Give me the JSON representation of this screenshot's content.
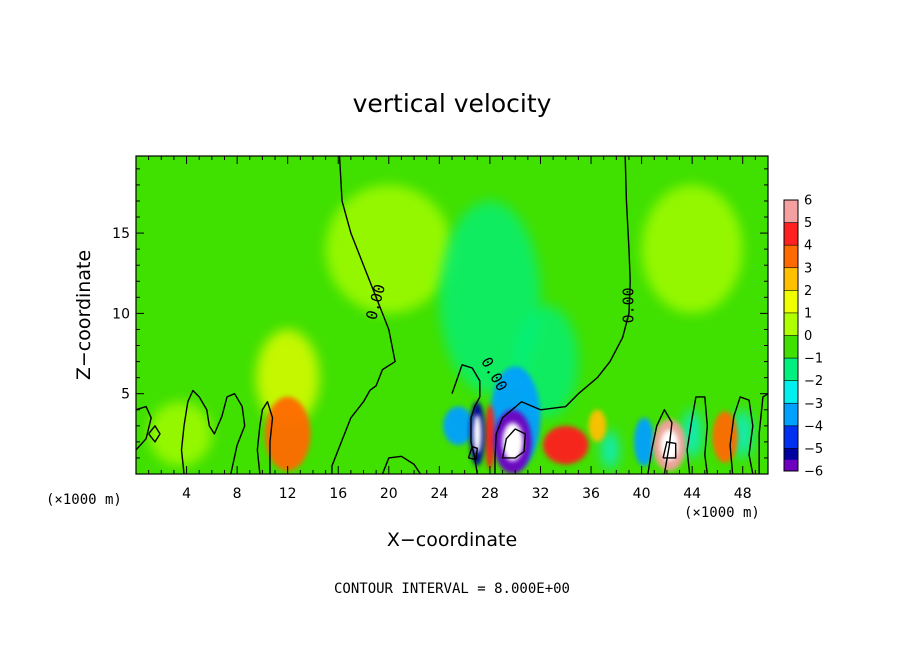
{
  "chart_data": {
    "type": "heatmap",
    "title": "vertical velocity",
    "xlabel": "X−coordinate",
    "ylabel": "Z−coordinate",
    "x_unit_left": "(×1000 m)",
    "x_unit_right": "(×1000 m)",
    "footer": "CONTOUR INTERVAL = 8.000E+00",
    "xlim": [
      0,
      50
    ],
    "ylim": [
      0,
      19.8
    ],
    "x_ticks": [
      4,
      8,
      12,
      16,
      20,
      24,
      28,
      32,
      36,
      40,
      44,
      48
    ],
    "x_tick_labels": [
      "4",
      "8",
      "12",
      "16",
      "20",
      "24",
      "28",
      "32",
      "36",
      "40",
      "44",
      "48"
    ],
    "y_ticks": [
      5,
      10,
      15
    ],
    "y_tick_labels": [
      "5",
      "10",
      "15"
    ],
    "contour_label": "0.00",
    "colorbar": {
      "levels": [
        6,
        5,
        4,
        3,
        2,
        1,
        0,
        -1,
        -2,
        -3,
        -4,
        -5,
        -6
      ],
      "labels": [
        "6",
        "5",
        "4",
        "3",
        "2",
        "1",
        "0",
        "−1",
        "−2",
        "−3",
        "−4",
        "−5",
        "−6"
      ],
      "colors": [
        "#f4a0a0",
        "#ff2020",
        "#ff6a00",
        "#ffc000",
        "#f0ff00",
        "#b0ff00",
        "#40e000",
        "#00f080",
        "#00f0f0",
        "#00a0ff",
        "#0030f0",
        "#0000a0",
        "#7000c0"
      ]
    },
    "background_color": "#40e000",
    "features": [
      {
        "x": 12.0,
        "z": 2.5,
        "rx": 1.8,
        "rz": 2.3,
        "value": 4
      },
      {
        "x": 12.0,
        "z": 6.0,
        "rx": 2.5,
        "rz": 3.0,
        "value": 1.5
      },
      {
        "x": 3.5,
        "z": 2.5,
        "rx": 2.5,
        "rz": 2.0,
        "value": 0.5
      },
      {
        "x": 27.0,
        "z": 2.5,
        "rx": 0.6,
        "rz": 2.0,
        "value": -5.5
      },
      {
        "x": 28.0,
        "z": 2.3,
        "rx": 0.4,
        "rz": 2.0,
        "value": 5
      },
      {
        "x": 29.8,
        "z": 2.0,
        "rx": 1.5,
        "rz": 2.0,
        "value": -6
      },
      {
        "x": 30.0,
        "z": 3.5,
        "rx": 2.0,
        "rz": 3.2,
        "value": -3
      },
      {
        "x": 32.5,
        "z": 7.0,
        "rx": 2.5,
        "rz": 3.5,
        "value": -1.5
      },
      {
        "x": 34.0,
        "z": 1.8,
        "rx": 1.8,
        "rz": 1.2,
        "value": 4.5
      },
      {
        "x": 36.5,
        "z": 3.0,
        "rx": 0.7,
        "rz": 1.0,
        "value": 3
      },
      {
        "x": 37.5,
        "z": 1.5,
        "rx": 0.7,
        "rz": 1.2,
        "value": -2.5
      },
      {
        "x": 40.2,
        "z": 2.0,
        "rx": 0.8,
        "rz": 1.5,
        "value": -3.5
      },
      {
        "x": 42.2,
        "z": 1.8,
        "rx": 1.3,
        "rz": 1.6,
        "value": 5.5
      },
      {
        "x": 44.0,
        "z": 2.5,
        "rx": 0.8,
        "rz": 1.5,
        "value": -2.5
      },
      {
        "x": 46.6,
        "z": 2.3,
        "rx": 1.0,
        "rz": 1.6,
        "value": 3.5
      },
      {
        "x": 48.0,
        "z": 2.5,
        "rx": 0.8,
        "rz": 1.5,
        "value": -2
      },
      {
        "x": 25.5,
        "z": 3.0,
        "rx": 1.2,
        "rz": 1.2,
        "value": -3
      },
      {
        "x": 28.0,
        "z": 11.0,
        "rx": 4.0,
        "rz": 6.0,
        "value": -1
      },
      {
        "x": 20.0,
        "z": 14.0,
        "rx": 5.0,
        "rz": 4.0,
        "value": 0.5
      },
      {
        "x": 44.0,
        "z": 14.0,
        "rx": 4.0,
        "rz": 4.0,
        "value": 0.5
      }
    ],
    "zero_contours": [
      [
        [
          16.1,
          19.8
        ],
        [
          16.3,
          17.0
        ],
        [
          17.0,
          15.0
        ],
        [
          18.0,
          13.0
        ],
        [
          19.0,
          11.0
        ],
        [
          20.0,
          9.0
        ],
        [
          20.5,
          7.0
        ],
        [
          19.5,
          6.5
        ],
        [
          19.0,
          5.5
        ],
        [
          18.5,
          5.2
        ],
        [
          18.0,
          4.5
        ],
        [
          17.0,
          3.5
        ],
        [
          16.5,
          2.5
        ],
        [
          16.0,
          1.5
        ],
        [
          15.5,
          0.5
        ],
        [
          15.5,
          0
        ]
      ],
      [
        [
          38.7,
          19.8
        ],
        [
          38.8,
          17.0
        ],
        [
          39.0,
          14.0
        ],
        [
          39.1,
          12.0
        ],
        [
          39.0,
          10.0
        ],
        [
          38.5,
          8.5
        ],
        [
          37.5,
          7.0
        ],
        [
          36.5,
          6.0
        ],
        [
          35.0,
          5.0
        ],
        [
          34.0,
          4.2
        ],
        [
          32.0,
          4.0
        ],
        [
          30.5,
          4.5
        ],
        [
          29.0,
          3.5
        ],
        [
          28.5,
          2.5
        ],
        [
          28.4,
          1.0
        ],
        [
          28.4,
          0
        ]
      ],
      [
        [
          25.0,
          5.0
        ],
        [
          25.8,
          6.8
        ],
        [
          26.6,
          6.6
        ],
        [
          27.2,
          5.8
        ],
        [
          27.2,
          4.8
        ],
        [
          26.8,
          4.2
        ],
        [
          26.5,
          3.5
        ],
        [
          26.5,
          2.0
        ],
        [
          26.8,
          1.0
        ],
        [
          27.0,
          0
        ]
      ],
      [
        [
          3.8,
          0
        ],
        [
          3.6,
          1.5
        ],
        [
          3.8,
          3.0
        ],
        [
          4.1,
          4.5
        ],
        [
          4.5,
          5.2
        ],
        [
          5.0,
          4.8
        ],
        [
          5.6,
          4.0
        ],
        [
          5.8,
          3.0
        ],
        [
          6.2,
          2.5
        ],
        [
          6.8,
          3.6
        ],
        [
          7.2,
          4.8
        ],
        [
          7.8,
          5.0
        ],
        [
          8.4,
          4.2
        ],
        [
          8.6,
          3.0
        ],
        [
          8.0,
          1.8
        ],
        [
          7.5,
          0
        ]
      ],
      [
        [
          9.8,
          0
        ],
        [
          9.6,
          1.5
        ],
        [
          9.8,
          3.0
        ],
        [
          10.0,
          4.0
        ],
        [
          10.4,
          4.5
        ],
        [
          10.8,
          3.5
        ],
        [
          10.6,
          2.0
        ],
        [
          10.6,
          0
        ]
      ],
      [
        [
          1.0,
          2.5
        ],
        [
          1.5,
          3.0
        ],
        [
          1.9,
          2.5
        ],
        [
          1.5,
          2.0
        ],
        [
          1.0,
          2.5
        ]
      ],
      [
        [
          0,
          1.5
        ],
        [
          0.8,
          2.2
        ],
        [
          1.2,
          3.5
        ],
        [
          0.8,
          4.2
        ],
        [
          0,
          4.0
        ]
      ],
      [
        [
          19.5,
          0
        ],
        [
          20.0,
          1.0
        ],
        [
          21.0,
          1.1
        ],
        [
          22.0,
          0.6
        ],
        [
          22.5,
          0
        ]
      ],
      [
        [
          40.5,
          0
        ],
        [
          40.8,
          1.5
        ],
        [
          41.2,
          3.0
        ],
        [
          41.8,
          4.0
        ],
        [
          42.4,
          3.2
        ],
        [
          42.2,
          1.8
        ],
        [
          41.8,
          0
        ]
      ],
      [
        [
          43.8,
          0
        ],
        [
          43.6,
          1.5
        ],
        [
          44.0,
          3.5
        ],
        [
          44.3,
          4.8
        ],
        [
          45.0,
          4.8
        ],
        [
          45.2,
          3.0
        ],
        [
          45.0,
          1.2
        ],
        [
          45.2,
          0
        ]
      ],
      [
        [
          47.2,
          0
        ],
        [
          47.0,
          1.8
        ],
        [
          47.3,
          3.6
        ],
        [
          47.8,
          4.8
        ],
        [
          48.5,
          4.6
        ],
        [
          48.8,
          3.0
        ],
        [
          48.5,
          1.2
        ],
        [
          48.8,
          0
        ]
      ],
      [
        [
          49.3,
          0
        ],
        [
          49.3,
          2.5
        ],
        [
          49.6,
          4.8
        ],
        [
          50.0,
          5.0
        ]
      ],
      [
        [
          29.0,
          1.0
        ],
        [
          29.3,
          2.2
        ],
        [
          30.0,
          2.8
        ],
        [
          30.8,
          2.5
        ],
        [
          30.7,
          1.4
        ],
        [
          30.0,
          1.0
        ],
        [
          29.0,
          1.0
        ]
      ],
      [
        [
          26.3,
          1.0
        ],
        [
          26.6,
          1.7
        ],
        [
          27.0,
          1.6
        ],
        [
          26.9,
          0.9
        ],
        [
          26.3,
          1.0
        ]
      ],
      [
        [
          41.7,
          1.0
        ],
        [
          42.0,
          2.0
        ],
        [
          42.7,
          1.9
        ],
        [
          42.7,
          1.0
        ],
        [
          41.7,
          1.0
        ]
      ]
    ],
    "contour_label_positions": [
      {
        "x": 19.0,
        "z": 10.7,
        "angle": -75
      },
      {
        "x": 39.0,
        "z": 10.5,
        "angle": -90
      },
      {
        "x": 28.3,
        "z": 6.2,
        "angle": 60
      }
    ],
    "grid": false
  }
}
